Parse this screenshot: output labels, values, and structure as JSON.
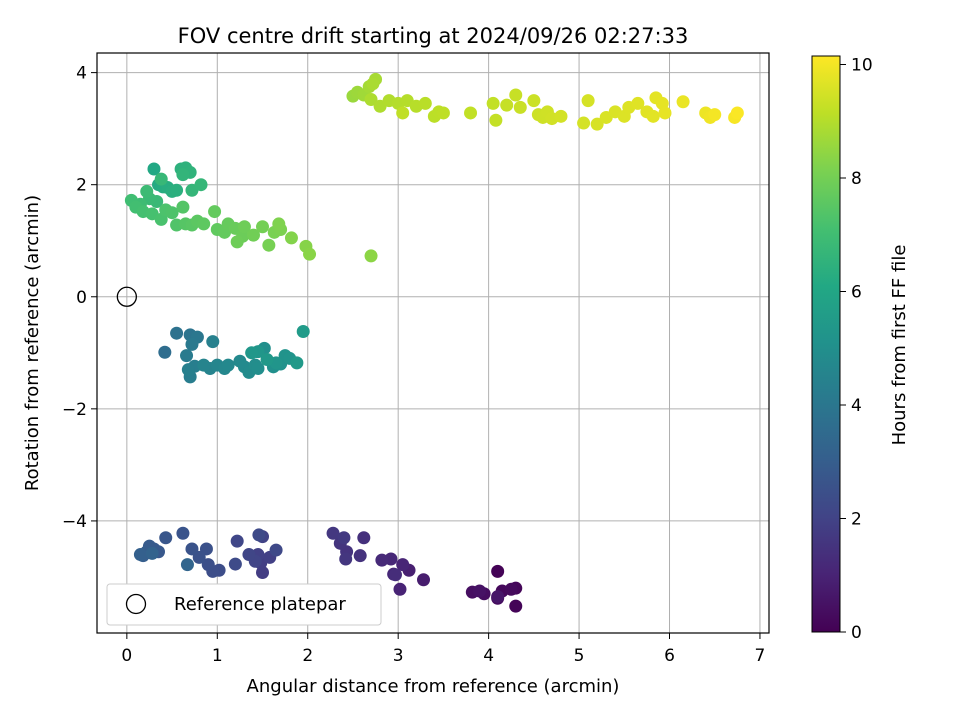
{
  "chart_data": {
    "type": "scatter",
    "title": "FOV centre drift starting at 2024/09/26 02:27:33",
    "xlabel": "Angular distance from reference (arcmin)",
    "ylabel": "Rotation from reference (arcmin)",
    "xlim": [
      -0.33,
      7.1
    ],
    "ylim": [
      -6.0,
      4.35
    ],
    "xticks": [
      0,
      1,
      2,
      3,
      4,
      5,
      6,
      7
    ],
    "yticks": [
      -4,
      -2,
      0,
      2,
      4
    ],
    "xtick_labels": [
      "0",
      "1",
      "2",
      "3",
      "4",
      "5",
      "6",
      "7"
    ],
    "ytick_labels": [
      "−4",
      "−2",
      "0",
      "2",
      "4"
    ],
    "grid": true,
    "colormap": "viridis",
    "colorbar": {
      "label": "Hours from first FF file",
      "range": [
        0,
        10.15
      ],
      "ticks": [
        0,
        2,
        4,
        6,
        8,
        10
      ],
      "tick_labels": [
        "0",
        "2",
        "4",
        "6",
        "8",
        "10"
      ]
    },
    "legend": {
      "position": "lower-left",
      "entries": [
        {
          "label": "Reference platepar",
          "marker": "open-circle",
          "x": 0,
          "y": 0
        }
      ]
    },
    "points": [
      [
        4.1,
        -4.9,
        0.05
      ],
      [
        4.3,
        -5.52,
        0.1
      ],
      [
        4.3,
        -5.2,
        0.15
      ],
      [
        4.15,
        -5.25,
        0.2
      ],
      [
        4.25,
        -5.22,
        0.25
      ],
      [
        4.1,
        -5.38,
        0.3
      ],
      [
        3.95,
        -5.3,
        0.35
      ],
      [
        3.82,
        -5.27,
        0.4
      ],
      [
        3.9,
        -5.25,
        0.5
      ],
      [
        4.1,
        -5.35,
        0.6
      ],
      [
        3.28,
        -5.05,
        0.8
      ],
      [
        3.12,
        -4.88,
        0.9
      ],
      [
        3.02,
        -5.22,
        1.0
      ],
      [
        3.05,
        -4.78,
        1.05
      ],
      [
        2.95,
        -4.95,
        1.1
      ],
      [
        2.92,
        -4.68,
        1.15
      ],
      [
        2.82,
        -4.7,
        1.2
      ],
      [
        2.97,
        -4.96,
        1.3
      ],
      [
        2.62,
        -4.3,
        1.4
      ],
      [
        2.58,
        -4.62,
        1.45
      ],
      [
        2.43,
        -4.55,
        1.5
      ],
      [
        2.36,
        -4.4,
        1.55
      ],
      [
        2.42,
        -4.68,
        1.6
      ],
      [
        2.28,
        -4.22,
        1.65
      ],
      [
        2.4,
        -4.3,
        1.7
      ],
      [
        1.5,
        -4.92,
        1.8
      ],
      [
        1.48,
        -4.75,
        1.85
      ],
      [
        1.58,
        -4.65,
        1.9
      ],
      [
        1.45,
        -4.6,
        1.95
      ],
      [
        1.5,
        -4.28,
        2.0
      ],
      [
        1.42,
        -4.72,
        2.05
      ],
      [
        1.35,
        -4.6,
        2.1
      ],
      [
        1.22,
        -4.36,
        2.15
      ],
      [
        1.65,
        -4.52,
        2.2
      ],
      [
        1.46,
        -4.25,
        2.25
      ],
      [
        1.2,
        -4.77,
        2.3
      ],
      [
        1.02,
        -4.88,
        2.35
      ],
      [
        0.95,
        -4.9,
        2.4
      ],
      [
        0.9,
        -4.78,
        2.45
      ],
      [
        0.88,
        -4.5,
        2.5
      ],
      [
        0.8,
        -4.65,
        2.55
      ],
      [
        0.72,
        -4.5,
        2.6
      ],
      [
        0.62,
        -4.22,
        2.65
      ],
      [
        0.43,
        -4.3,
        2.7
      ],
      [
        0.35,
        -4.55,
        2.8
      ],
      [
        0.3,
        -4.5,
        2.85
      ],
      [
        0.25,
        -4.45,
        2.9
      ],
      [
        0.22,
        -4.55,
        2.95
      ],
      [
        0.18,
        -4.62,
        3.0
      ],
      [
        0.15,
        -4.6,
        3.1
      ],
      [
        0.28,
        -4.58,
        3.2
      ],
      [
        0.67,
        -4.78,
        3.3
      ],
      [
        0.42,
        -0.99,
        3.6
      ],
      [
        0.55,
        -0.65,
        3.8
      ],
      [
        0.7,
        -0.68,
        3.9
      ],
      [
        0.78,
        -0.72,
        4.0
      ],
      [
        0.72,
        -0.85,
        4.1
      ],
      [
        0.66,
        -1.05,
        4.2
      ],
      [
        0.7,
        -1.43,
        4.25
      ],
      [
        0.75,
        -1.24,
        4.3
      ],
      [
        0.68,
        -1.3,
        4.35
      ],
      [
        0.95,
        -0.8,
        4.4
      ],
      [
        0.92,
        -1.28,
        4.5
      ],
      [
        0.85,
        -1.22,
        4.55
      ],
      [
        1.0,
        -1.22,
        4.6
      ],
      [
        1.08,
        -1.28,
        4.65
      ],
      [
        1.12,
        -1.22,
        4.7
      ],
      [
        1.25,
        -1.15,
        4.75
      ],
      [
        1.3,
        -1.25,
        4.8
      ],
      [
        1.35,
        -1.35,
        4.85
      ],
      [
        1.42,
        -1.22,
        4.9
      ],
      [
        1.45,
        -1.28,
        4.95
      ],
      [
        1.52,
        -0.92,
        5.0
      ],
      [
        1.62,
        -1.25,
        5.05
      ],
      [
        1.7,
        -1.2,
        5.1
      ],
      [
        1.75,
        -1.05,
        5.15
      ],
      [
        1.8,
        -1.1,
        5.2
      ],
      [
        1.65,
        -1.18,
        5.25
      ],
      [
        1.45,
        -0.98,
        5.3
      ],
      [
        1.38,
        -1.0,
        5.35
      ],
      [
        1.55,
        -1.12,
        5.4
      ],
      [
        1.88,
        -1.18,
        5.45
      ],
      [
        1.95,
        -0.62,
        5.5
      ],
      [
        0.3,
        2.28,
        6.1
      ],
      [
        0.35,
        2.0,
        6.2
      ],
      [
        0.4,
        1.96,
        6.25
      ],
      [
        0.45,
        1.95,
        6.3
      ],
      [
        0.5,
        1.88,
        6.35
      ],
      [
        0.55,
        1.9,
        6.4
      ],
      [
        0.6,
        2.28,
        6.45
      ],
      [
        0.65,
        2.3,
        6.5
      ],
      [
        0.7,
        2.22,
        6.55
      ],
      [
        0.62,
        2.18,
        6.6
      ],
      [
        0.72,
        1.9,
        6.65
      ],
      [
        0.82,
        2.0,
        6.7
      ],
      [
        0.38,
        2.1,
        6.75
      ],
      [
        0.33,
        1.7,
        6.8
      ],
      [
        0.25,
        1.75,
        6.85
      ],
      [
        0.22,
        1.88,
        6.9
      ],
      [
        0.15,
        1.65,
        6.95
      ],
      [
        0.05,
        1.72,
        7.0
      ],
      [
        0.1,
        1.6,
        7.05
      ],
      [
        0.18,
        1.52,
        7.1
      ],
      [
        0.28,
        1.48,
        7.15
      ],
      [
        0.38,
        1.38,
        7.2
      ],
      [
        0.43,
        1.55,
        7.25
      ],
      [
        0.5,
        1.5,
        7.3
      ],
      [
        0.55,
        1.28,
        7.35
      ],
      [
        0.62,
        1.6,
        7.4
      ],
      [
        0.65,
        1.3,
        7.45
      ],
      [
        0.72,
        1.28,
        7.5
      ],
      [
        0.78,
        1.35,
        7.55
      ],
      [
        0.85,
        1.3,
        7.6
      ],
      [
        1.0,
        1.2,
        7.65
      ],
      [
        1.08,
        1.15,
        7.7
      ],
      [
        1.12,
        1.3,
        7.75
      ],
      [
        1.2,
        1.22,
        7.8
      ],
      [
        1.28,
        1.08,
        7.85
      ],
      [
        1.3,
        1.25,
        7.9
      ],
      [
        1.4,
        1.1,
        7.95
      ],
      [
        1.5,
        1.25,
        8.0
      ],
      [
        1.57,
        0.92,
        8.05
      ],
      [
        1.63,
        1.15,
        8.1
      ],
      [
        1.7,
        1.2,
        8.15
      ],
      [
        1.68,
        1.3,
        8.2
      ],
      [
        1.82,
        1.05,
        8.25
      ],
      [
        1.98,
        0.9,
        8.3
      ],
      [
        2.02,
        0.76,
        8.35
      ],
      [
        1.22,
        0.98,
        7.9
      ],
      [
        0.97,
        1.52,
        7.7
      ],
      [
        2.7,
        0.73,
        8.4
      ],
      [
        2.5,
        3.58,
        8.6
      ],
      [
        2.55,
        3.65,
        8.65
      ],
      [
        2.62,
        3.6,
        8.7
      ],
      [
        2.68,
        3.75,
        8.75
      ],
      [
        2.75,
        3.88,
        8.8
      ],
      [
        2.72,
        3.8,
        8.85
      ],
      [
        2.7,
        3.52,
        8.9
      ],
      [
        2.8,
        3.4,
        8.92
      ],
      [
        2.9,
        3.5,
        8.95
      ],
      [
        3.0,
        3.45,
        9.0
      ],
      [
        3.1,
        3.5,
        9.02
      ],
      [
        3.2,
        3.4,
        9.05
      ],
      [
        3.3,
        3.45,
        9.08
      ],
      [
        3.4,
        3.22,
        9.1
      ],
      [
        3.45,
        3.3,
        9.12
      ],
      [
        3.5,
        3.28,
        9.15
      ],
      [
        3.05,
        3.28,
        9.18
      ],
      [
        3.8,
        3.28,
        9.2
      ],
      [
        4.05,
        3.45,
        9.22
      ],
      [
        4.08,
        3.15,
        9.25
      ],
      [
        4.2,
        3.42,
        9.28
      ],
      [
        4.3,
        3.6,
        9.3
      ],
      [
        4.35,
        3.38,
        9.32
      ],
      [
        4.5,
        3.5,
        9.35
      ],
      [
        4.55,
        3.25,
        9.38
      ],
      [
        4.6,
        3.2,
        9.4
      ],
      [
        4.65,
        3.3,
        9.42
      ],
      [
        4.7,
        3.18,
        9.45
      ],
      [
        4.8,
        3.22,
        9.48
      ],
      [
        5.05,
        3.1,
        9.5
      ],
      [
        5.1,
        3.5,
        9.52
      ],
      [
        5.2,
        3.08,
        9.55
      ],
      [
        5.3,
        3.2,
        9.58
      ],
      [
        5.4,
        3.3,
        9.6
      ],
      [
        5.5,
        3.22,
        9.62
      ],
      [
        5.55,
        3.38,
        9.65
      ],
      [
        5.65,
        3.45,
        9.68
      ],
      [
        5.75,
        3.3,
        9.7
      ],
      [
        5.82,
        3.22,
        9.72
      ],
      [
        5.85,
        3.55,
        9.75
      ],
      [
        5.92,
        3.45,
        9.78
      ],
      [
        5.95,
        3.28,
        9.8
      ],
      [
        6.15,
        3.48,
        9.85
      ],
      [
        6.4,
        3.28,
        9.9
      ],
      [
        6.45,
        3.2,
        9.95
      ],
      [
        6.5,
        3.25,
        10.0
      ],
      [
        6.72,
        3.2,
        10.05
      ],
      [
        6.75,
        3.28,
        10.1
      ]
    ]
  }
}
